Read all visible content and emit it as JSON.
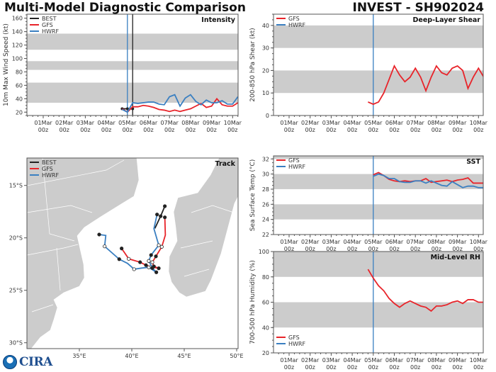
{
  "header": {
    "title": "Multi-Model Diagnostic Comparison",
    "storm": "INVEST - SH902024"
  },
  "logo": {
    "text": "CIRA",
    "agency": "NOAA"
  },
  "colors": {
    "BEST": "#222222",
    "GFS": "#e8242a",
    "HWRF": "#3a7fc1",
    "band": "#cccccc"
  },
  "time_axis": {
    "tick_labels": [
      [
        "01Mar",
        "00z"
      ],
      [
        "02Mar",
        "00z"
      ],
      [
        "03Mar",
        "00z"
      ],
      [
        "04Mar",
        "00z"
      ],
      [
        "05Mar",
        "00z"
      ],
      [
        "06Mar",
        "00z"
      ],
      [
        "07Mar",
        "00z"
      ],
      [
        "08Mar",
        "00z"
      ],
      [
        "09Mar",
        "00z"
      ],
      [
        "10Mar",
        "00z"
      ]
    ],
    "times": [
      "04Mar 18z",
      "05Mar 00z",
      "05Mar 06z",
      "05Mar 12z",
      "05Mar 18z",
      "06Mar 00z",
      "06Mar 06z",
      "06Mar 12z",
      "06Mar 18z",
      "07Mar 00z",
      "07Mar 06z",
      "07Mar 12z",
      "07Mar 18z",
      "08Mar 00z",
      "08Mar 06z",
      "08Mar 12z",
      "08Mar 18z",
      "09Mar 00z",
      "09Mar 06z",
      "09Mar 12z",
      "09Mar 18z",
      "10Mar 00z",
      "10Mar 06z"
    ]
  },
  "chart_data": [
    {
      "id": "intensity",
      "type": "line",
      "title": "Intensity",
      "ylabel": "10m Max Wind Speed (kt)",
      "ylim": [
        15,
        166
      ],
      "yticks": [
        20,
        40,
        60,
        80,
        100,
        120,
        140,
        160
      ],
      "bands": [
        [
          34,
          64
        ],
        [
          83,
          96
        ],
        [
          113,
          137
        ]
      ],
      "vlines": [
        {
          "time": "05Mar 00z",
          "color": "HWRF"
        },
        {
          "time": "05Mar 06z",
          "color": "BEST"
        }
      ],
      "legend": [
        "BEST",
        "GFS",
        "HWRF"
      ],
      "legend_position": "top-left",
      "series": [
        {
          "name": "BEST",
          "times": [
            "04Mar 18z",
            "05Mar 00z",
            "05Mar 06z"
          ],
          "values": [
            25,
            25,
            25
          ],
          "markers": true
        },
        {
          "name": "GFS",
          "values": [
            25,
            20,
            28,
            28,
            30,
            29,
            27,
            24,
            23,
            21,
            23,
            21,
            23,
            25,
            29,
            33,
            27,
            29,
            40,
            31,
            29,
            29,
            34
          ]
        },
        {
          "name": "HWRF",
          "values": [
            24,
            20,
            34,
            33,
            34,
            35,
            35,
            32,
            31,
            43,
            46,
            29,
            41,
            46,
            36,
            31,
            38,
            34,
            34,
            37,
            32,
            32,
            43
          ]
        }
      ]
    },
    {
      "id": "shear",
      "type": "line",
      "title": "Deep-Layer Shear",
      "ylabel": "200-850 hPa Shear (kt)",
      "ylim": [
        0,
        45
      ],
      "yticks": [
        0,
        10,
        20,
        30,
        40
      ],
      "bands": [
        [
          10,
          20
        ],
        [
          30,
          40
        ]
      ],
      "vlines": [
        {
          "time": "05Mar 00z",
          "color": "HWRF"
        }
      ],
      "legend": [
        "GFS",
        "HWRF"
      ],
      "legend_position": "top-left",
      "series": [
        {
          "name": "GFS",
          "values": [
            6,
            5,
            6,
            10,
            16,
            22,
            18,
            15,
            17,
            21,
            17,
            11,
            17,
            22,
            19,
            18,
            21,
            22,
            20,
            12,
            17,
            21,
            17
          ]
        }
      ]
    },
    {
      "id": "sst",
      "type": "line",
      "title": "SST",
      "ylabel": "Sea Surface Temp (°C)",
      "ylim": [
        22,
        32.4
      ],
      "yticks": [
        22,
        24,
        26,
        28,
        30,
        32
      ],
      "bands": [
        [
          24,
          26
        ],
        [
          28,
          30
        ],
        [
          32,
          34
        ]
      ],
      "vlines": [
        {
          "time": "05Mar 00z",
          "color": "HWRF"
        }
      ],
      "legend": [
        "GFS",
        "HWRF"
      ],
      "legend_position": "top-left",
      "series": [
        {
          "name": "GFS",
          "values": [
            null,
            29.9,
            30.2,
            29.8,
            29.3,
            29.1,
            29.0,
            29.1,
            29.0,
            29.1,
            29.1,
            29.4,
            28.9,
            29.0,
            29.1,
            29.2,
            29.0,
            29.2,
            29.3,
            29.5,
            28.8,
            28.8,
            28.8
          ]
        },
        {
          "name": "HWRF",
          "values": [
            null,
            29.7,
            30.0,
            29.8,
            29.4,
            29.4,
            29.0,
            28.9,
            28.9,
            29.1,
            29.1,
            28.8,
            29.1,
            28.8,
            28.5,
            28.4,
            29.0,
            28.6,
            28.2,
            28.4,
            28.4,
            28.2,
            28.2
          ]
        }
      ]
    },
    {
      "id": "rh",
      "type": "line",
      "title": "Mid-Level RH",
      "ylabel": "700-500 hPa Humidity (%)",
      "ylim": [
        20,
        100
      ],
      "yticks": [
        20,
        40,
        60,
        80,
        100
      ],
      "bands": [
        [
          40,
          60
        ],
        [
          80,
          100
        ]
      ],
      "vlines": [
        {
          "time": "05Mar 00z",
          "color": "HWRF"
        }
      ],
      "legend": [
        "GFS",
        "HWRF"
      ],
      "legend_position": "bottom-left",
      "series": [
        {
          "name": "GFS",
          "values": [
            86,
            79,
            73,
            69,
            63,
            59,
            56,
            59,
            61,
            59,
            57,
            56,
            53,
            57,
            57,
            58,
            60,
            61,
            59,
            62,
            62,
            60,
            60
          ]
        }
      ]
    },
    {
      "id": "track",
      "type": "map",
      "title": "Track",
      "lon_range": [
        30,
        50.1
      ],
      "lat_range": [
        -30.5,
        -12.4
      ],
      "lon_ticks": [
        {
          "v": 35,
          "label": "35°E"
        },
        {
          "v": 40,
          "label": "40°E"
        },
        {
          "v": 45,
          "label": "45°E"
        },
        {
          "v": 50,
          "label": "50°E"
        }
      ],
      "lat_ticks": [
        {
          "v": -15,
          "label": "15°S"
        },
        {
          "v": -20,
          "label": "20°S"
        },
        {
          "v": -25,
          "label": "25°S"
        },
        {
          "v": -30,
          "label": "30°S"
        }
      ],
      "legend": [
        "BEST",
        "GFS",
        "HWRF"
      ],
      "legend_position": "top-left",
      "tracks": [
        {
          "name": "BEST",
          "points": [
            [
              43.15,
              -16.98
            ],
            [
              42.75,
              -17.93
            ],
            [
              42.2,
              -19.1
            ]
          ],
          "markers": [
            "filled",
            "filled",
            null
          ]
        },
        {
          "name": "GFS",
          "points": [
            [
              43.15,
              -18.04
            ],
            [
              43.2,
              -19.73
            ],
            [
              42.86,
              -20.85
            ],
            [
              42.3,
              -21.76
            ],
            [
              41.96,
              -22.32
            ],
            [
              42.11,
              -22.72
            ],
            [
              42.57,
              -22.9
            ],
            [
              41.84,
              -22.77
            ],
            [
              41.35,
              -22.6
            ],
            [
              40.79,
              -22.32
            ],
            [
              39.71,
              -22.0
            ],
            [
              39.03,
              -21.01
            ]
          ],
          "markers": [
            "filled",
            null,
            "open",
            "filled",
            "open",
            "filled",
            "filled",
            "open",
            "filled",
            "filled",
            "open",
            "filled"
          ]
        },
        {
          "name": "HWRF",
          "points": [
            [
              42.41,
              -17.77
            ],
            [
              42.11,
              -19.12
            ],
            [
              42.57,
              -20.7
            ],
            [
              41.84,
              -21.64
            ],
            [
              41.62,
              -22.2
            ],
            [
              41.96,
              -22.88
            ],
            [
              42.34,
              -23.28
            ],
            [
              41.62,
              -22.81
            ],
            [
              40.95,
              -22.88
            ],
            [
              40.22,
              -22.99
            ],
            [
              39.59,
              -22.43
            ],
            [
              38.8,
              -22.03
            ],
            [
              37.41,
              -20.81
            ],
            [
              37.52,
              -19.77
            ],
            [
              36.89,
              -19.68
            ]
          ],
          "markers": [
            "filled",
            null,
            "open",
            "filled",
            "open",
            "filled",
            "filled",
            "open",
            null,
            "open",
            null,
            "filled",
            "open",
            null,
            "filled"
          ]
        }
      ]
    }
  ]
}
